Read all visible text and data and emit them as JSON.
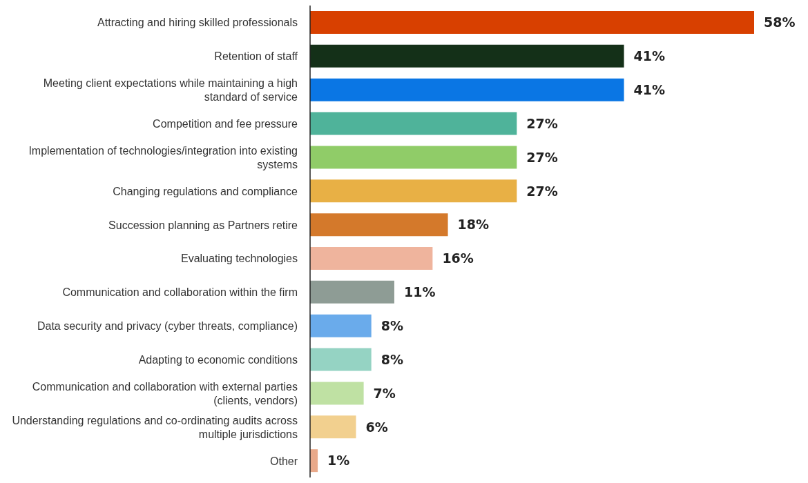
{
  "chart_data": {
    "type": "bar",
    "orientation": "horizontal",
    "categories": [
      "Attracting and hiring skilled professionals",
      "Retention of staff",
      "Meeting client expectations while maintaining a high standard of service",
      "Competition and fee pressure",
      "Implementation of technologies/integration into existing systems",
      "Changing regulations and compliance",
      "Succession planning as Partners retire",
      "Evaluating technologies",
      "Communication and collaboration within the firm",
      "Data security and privacy (cyber threats, compliance)",
      "Adapting to economic conditions",
      "Communication and collaboration with external parties (clients, vendors)",
      "Understanding regulations and co-ordinating audits across multiple jurisdictions",
      "Other"
    ],
    "values": [
      58,
      41,
      41,
      27,
      27,
      27,
      18,
      16,
      11,
      8,
      8,
      7,
      6,
      1
    ],
    "value_labels": [
      "58%",
      "41%",
      "41%",
      "27%",
      "27%",
      "27%",
      "18%",
      "16%",
      "11%",
      "8%",
      "8%",
      "7%",
      "6%",
      "1%"
    ],
    "colors": [
      "#d84000",
      "#143018",
      "#0a76e4",
      "#4fb39a",
      "#90cc68",
      "#e8b045",
      "#d4792b",
      "#efb49d",
      "#8e9c95",
      "#6aabeb",
      "#95d3c3",
      "#bfe1a3",
      "#f2d08f",
      "#e9a98a"
    ]
  }
}
